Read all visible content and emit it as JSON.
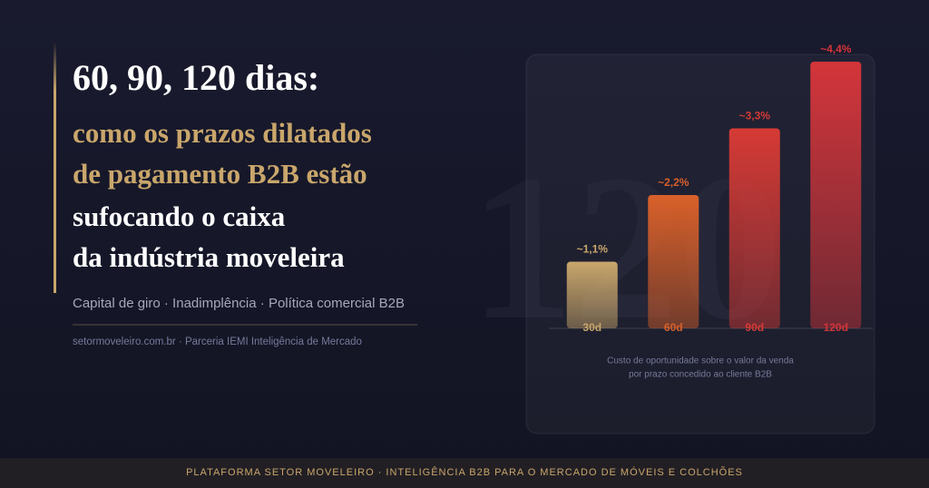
{
  "header": {
    "title": "60, 90, 120 dias:",
    "subtitle_lines": [
      "como os prazos dilatados",
      "de pagamento B2B estão",
      "sufocando o caixa",
      "da indústria moveleira"
    ],
    "tags": "Capital de giro · Inadimplência · Política comercial B2B",
    "source": "setormoveleiro.com.br · Parceria IEMI Inteligência de Mercado"
  },
  "watermark": "120",
  "chart_data": {
    "type": "bar",
    "categories": [
      "30d",
      "60d",
      "90d",
      "120d"
    ],
    "values": [
      1.1,
      2.2,
      3.3,
      4.4
    ],
    "value_labels": [
      "~1,1%",
      "~2,2%",
      "~3,3%",
      "~4,4%"
    ],
    "colors": [
      "#c9a66b",
      "#d9602a",
      "#d63a35",
      "#d3353a"
    ],
    "caption_lines": [
      "Custo de oportunidade sobre o valor da venda",
      "por prazo concedido ao cliente B2B"
    ]
  },
  "footer": "PLATAFORMA SETOR MOVELEIRO · INTELIGÊNCIA B2B PARA O MERCADO DE MÓVEIS E COLCHÕES"
}
